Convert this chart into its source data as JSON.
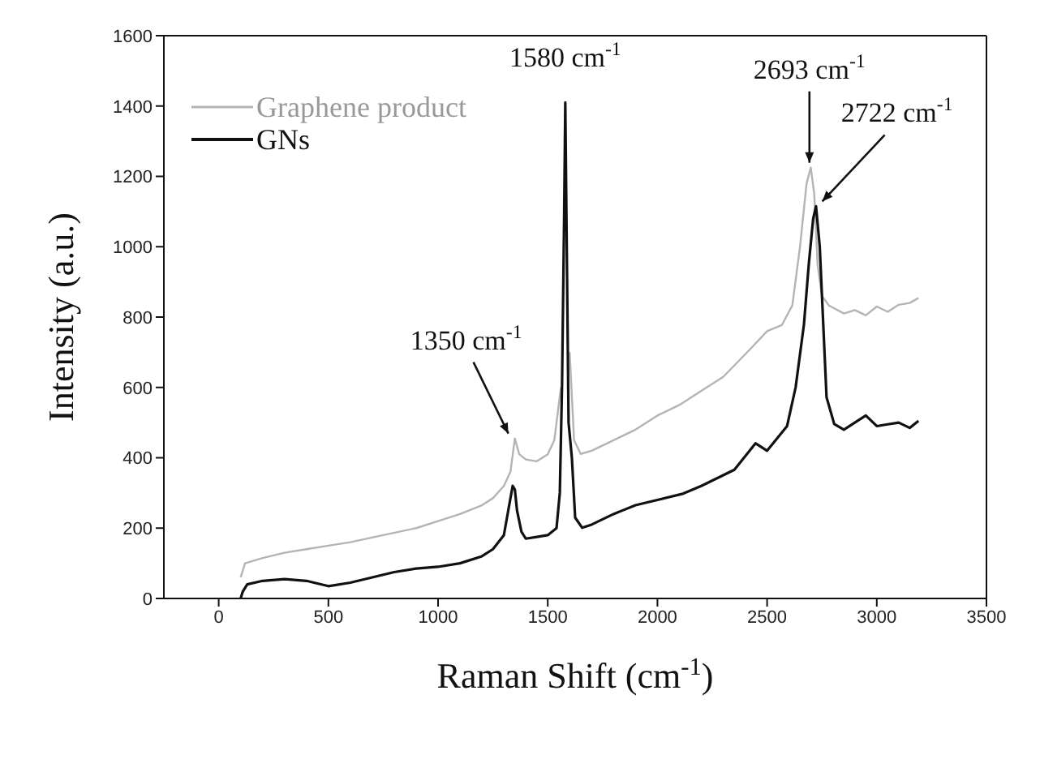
{
  "chart_data": {
    "type": "line",
    "xlabel": "Raman Shift (cm$^{-1}$)",
    "ylabel": "Intensity (a.u.)",
    "xlim": [
      -250,
      3500
    ],
    "xticks": [
      0,
      500,
      1000,
      1500,
      2000,
      2500,
      3000,
      3500
    ],
    "ylim": [
      0,
      1600
    ],
    "yticks": [
      0,
      200,
      400,
      600,
      800,
      1000,
      1200,
      1400,
      1600
    ],
    "legend": "top left",
    "marker": "none",
    "line_style": "solid",
    "series": [
      {
        "name": "Graphene product",
        "color": "#b4b4b4",
        "x": [
          100,
          120,
          200,
          300,
          400,
          500,
          600,
          750,
          900,
          1000,
          1100,
          1200,
          1250,
          1300,
          1330,
          1350,
          1370,
          1400,
          1450,
          1500,
          1530,
          1560,
          1570,
          1590,
          1600,
          1620,
          1650,
          1700,
          1800,
          1900,
          2000,
          2100,
          2200,
          2300,
          2423,
          2500,
          2567,
          2615,
          2650,
          2680,
          2699,
          2715,
          2730,
          2750,
          2782,
          2850,
          2900,
          2950,
          3000,
          3050,
          3100,
          3150,
          3190
        ],
        "values": [
          60,
          100,
          115,
          130,
          140,
          150,
          160,
          180,
          200,
          220,
          240,
          265,
          285,
          320,
          360,
          455,
          410,
          395,
          390,
          410,
          450,
          600,
          null,
          null,
          700,
          450,
          411,
          420,
          450,
          480,
          520,
          550,
          590,
          630,
          709,
          760,
          777,
          833,
          1000,
          1180,
          1225,
          1150,
          950,
          860,
          833,
          810,
          820,
          805,
          830,
          815,
          835,
          840,
          854
        ]
      },
      {
        "name": "GNs",
        "color": "#111111",
        "x": [
          100,
          110,
          130,
          200,
          300,
          400,
          500,
          600,
          700,
          800,
          900,
          1000,
          1100,
          1200,
          1250,
          1300,
          1320,
          1340,
          1350,
          1360,
          1380,
          1400,
          1450,
          1500,
          1540,
          1555,
          1565,
          1575,
          1580,
          1585,
          1595,
          1610,
          1625,
          1657,
          1700,
          1800,
          1900,
          2000,
          2112,
          2200,
          2351,
          2447,
          2500,
          2591,
          2630,
          2668,
          2690,
          2710,
          2723,
          2740,
          2771,
          2806,
          2850,
          2900,
          2950,
          3000,
          3050,
          3100,
          3150,
          3190
        ],
        "values": [
          0,
          20,
          40,
          50,
          55,
          50,
          35,
          45,
          60,
          75,
          85,
          90,
          100,
          120,
          140,
          180,
          250,
          320,
          310,
          250,
          190,
          170,
          175,
          180,
          200,
          300,
          600,
          1100,
          1410,
          1100,
          500,
          400,
          230,
          201,
          210,
          240,
          265,
          280,
          297,
          320,
          366,
          441,
          420,
          490,
          600,
          779,
          950,
          1080,
          1115,
          1000,
          572,
          496,
          480,
          500,
          520,
          490,
          495,
          500,
          485,
          505
        ]
      }
    ],
    "annotations": [
      {
        "text": "1350 cm$^{-1}$",
        "x": 1350,
        "y": 455
      },
      {
        "text": "1580 cm$^{-1}$",
        "x": 1580,
        "y": 1410
      },
      {
        "text": "2693 cm$^{-1}$",
        "x": 2693,
        "y": 1225
      },
      {
        "text": "2722 cm$^{-1}$",
        "x": 2722,
        "y": 1115
      }
    ]
  }
}
